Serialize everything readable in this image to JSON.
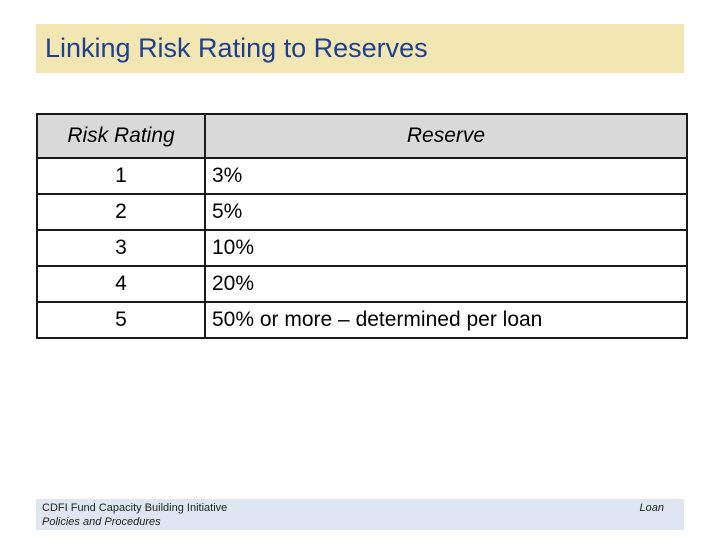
{
  "title": "Linking Risk Rating to Reserves",
  "table": {
    "headers": [
      "Risk Rating",
      "Reserve"
    ],
    "rows": [
      {
        "rating": "1",
        "reserve": "3%"
      },
      {
        "rating": "2",
        "reserve": "5%"
      },
      {
        "rating": "3",
        "reserve": "10%"
      },
      {
        "rating": "4",
        "reserve": "20%"
      },
      {
        "rating": "5",
        "reserve": "50% or more – determined per loan"
      }
    ]
  },
  "footer": {
    "line1": "CDFI Fund Capacity Building Initiative",
    "line2": "Policies and Procedures",
    "right": "Loan"
  },
  "colors": {
    "title_bg": "#f2e6b3",
    "title_text": "#1f3f8f",
    "header_bg": "#d9d9d9",
    "footer_bg": "#dfe6f1"
  }
}
